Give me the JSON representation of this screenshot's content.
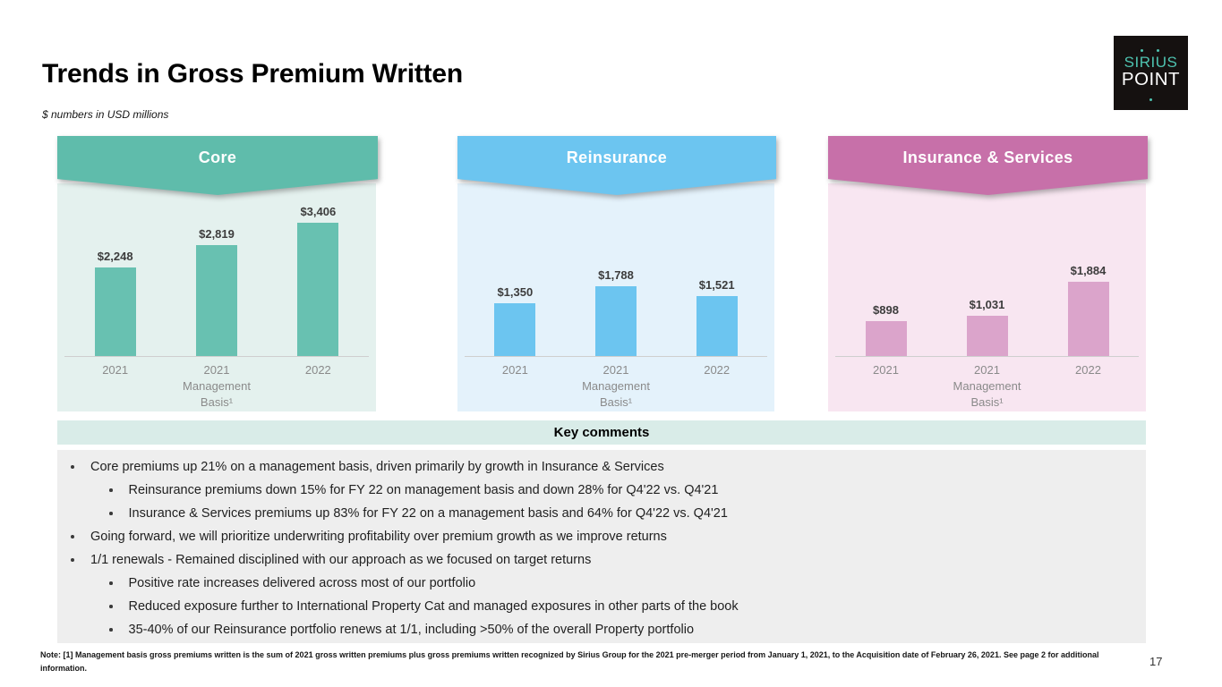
{
  "slide": {
    "title": "Trends in Gross Premium Written",
    "subtitle": "$ numbers in USD millions",
    "page_number": "17",
    "footnote": "Note: [1] Management basis gross premiums written is the sum of 2021 gross written premiums plus gross premiums written recognized by Sirius Group for the 2021 pre-merger period from January 1, 2021, to the Acquisition date of February 26, 2021. See page 2 for additional information."
  },
  "logo": {
    "line1": "SIRIUS",
    "line2": "POINT"
  },
  "key_comments": {
    "header": "Key comments",
    "bullets": [
      {
        "level": 1,
        "text": "Core premiums up 21% on a management basis, driven primarily by growth in Insurance & Services"
      },
      {
        "level": 2,
        "text": "Reinsurance premiums down 15% for FY 22 on management basis and down 28% for Q4'22 vs. Q4'21"
      },
      {
        "level": 2,
        "text": "Insurance & Services premiums up 83% for FY 22 on a management basis and 64% for Q4'22 vs. Q4'21"
      },
      {
        "level": 1,
        "text": "Going forward, we will prioritize underwriting profitability over premium growth as we improve returns"
      },
      {
        "level": 1,
        "text": "1/1 renewals - Remained disciplined with our approach as we focused on target returns"
      },
      {
        "level": 2,
        "text": "Positive rate increases delivered across most of our portfolio"
      },
      {
        "level": 2,
        "text": "Reduced exposure further to International Property Cat and managed exposures in other parts of the book"
      },
      {
        "level": 2,
        "text": "35-40% of our Reinsurance portfolio renews at 1/1, including >50% of the overall Property portfolio"
      }
    ]
  },
  "chart_data": [
    {
      "type": "bar",
      "title": "Core",
      "categories": [
        "2021",
        "2021\nManagement\nBasis¹",
        "2022"
      ],
      "values": [
        2248,
        2819,
        3406
      ],
      "value_labels": [
        "$2,248",
        "$2,819",
        "$3,406"
      ],
      "xlabel": "",
      "ylabel": "",
      "ylim": [
        0,
        3600
      ],
      "grid": false,
      "legend": false,
      "colors": {
        "banner": "#5fbcab",
        "bar": "#68c1b1",
        "panel_bg": "#e4f1ee"
      }
    },
    {
      "type": "bar",
      "title": "Reinsurance",
      "categories": [
        "2021",
        "2021\nManagement\nBasis¹",
        "2022"
      ],
      "values": [
        1350,
        1788,
        1521
      ],
      "value_labels": [
        "$1,350",
        "$1,788",
        "$1,521"
      ],
      "xlabel": "",
      "ylabel": "",
      "ylim": [
        0,
        3600
      ],
      "grid": false,
      "legend": false,
      "colors": {
        "banner": "#6cc5f0",
        "bar": "#6cc5f0",
        "panel_bg": "#e4f2fb"
      }
    },
    {
      "type": "bar",
      "title": "Insurance & Services",
      "categories": [
        "2021",
        "2021\nManagement\nBasis¹",
        "2022"
      ],
      "values": [
        898,
        1031,
        1884
      ],
      "value_labels": [
        "$898",
        "$1,031",
        "$1,884"
      ],
      "xlabel": "",
      "ylabel": "",
      "ylim": [
        0,
        3600
      ],
      "grid": false,
      "legend": false,
      "colors": {
        "banner": "#c770a9",
        "bar": "#dba4cb",
        "panel_bg": "#f8e6f1"
      }
    }
  ]
}
